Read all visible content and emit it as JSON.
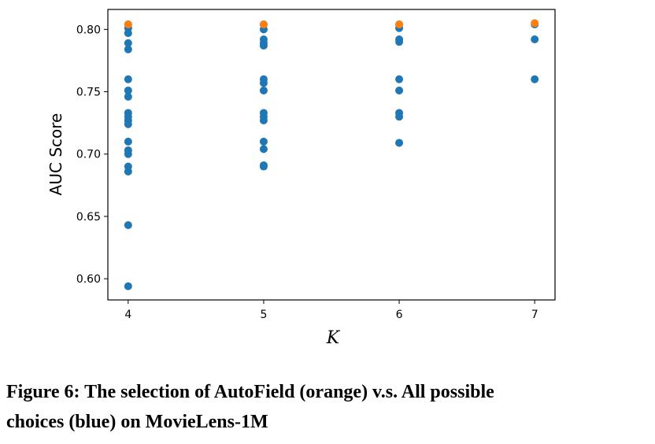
{
  "chart_data": {
    "type": "scatter",
    "xlabel": "K",
    "ylabel": "AUC Score",
    "series": [
      {
        "name": "All possible choices",
        "color": "#1f77b4",
        "x": [
          4,
          4,
          4,
          4,
          4,
          4,
          4,
          4,
          4,
          4,
          4,
          4,
          4,
          4,
          4,
          4,
          4,
          4,
          4,
          5,
          5,
          5,
          5,
          5,
          5,
          5,
          5,
          5,
          5,
          5,
          5,
          5,
          5,
          5,
          6,
          6,
          6,
          6,
          6,
          6,
          6,
          6,
          6,
          7,
          7,
          7
        ],
        "values": [
          0.804,
          0.801,
          0.797,
          0.789,
          0.784,
          0.76,
          0.751,
          0.746,
          0.733,
          0.73,
          0.727,
          0.724,
          0.71,
          0.703,
          0.7,
          0.69,
          0.686,
          0.643,
          0.594,
          0.804,
          0.8,
          0.792,
          0.789,
          0.787,
          0.76,
          0.757,
          0.751,
          0.733,
          0.73,
          0.727,
          0.71,
          0.704,
          0.691,
          0.69,
          0.804,
          0.801,
          0.792,
          0.79,
          0.76,
          0.751,
          0.733,
          0.73,
          0.709,
          0.804,
          0.792,
          0.76
        ]
      },
      {
        "name": "AutoField",
        "color": "#ff7f0e",
        "x": [
          4,
          5,
          6,
          7
        ],
        "values": [
          0.804,
          0.804,
          0.804,
          0.805
        ]
      }
    ],
    "xlim": [
      3.85,
      7.15
    ],
    "ylim": [
      0.583,
      0.816
    ],
    "xticks": [
      4,
      5,
      6,
      7
    ],
    "yticks": [
      {
        "value": 0.6,
        "label": "0.60"
      },
      {
        "value": 0.65,
        "label": "0.65"
      },
      {
        "value": 0.7,
        "label": "0.70"
      },
      {
        "value": 0.75,
        "label": "0.75"
      },
      {
        "value": 0.8,
        "label": "0.80"
      }
    ],
    "grid": false
  },
  "caption": {
    "lines": [
      "Figure 6: The selection of AutoField (orange) v.s. All possible",
      "choices (blue) on MovieLens-1M"
    ]
  }
}
